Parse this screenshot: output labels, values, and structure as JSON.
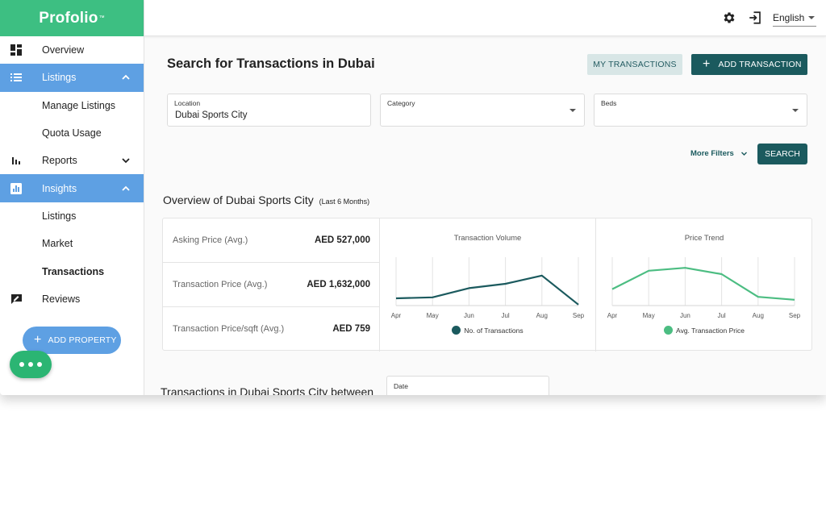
{
  "brand": {
    "name": "Profolio",
    "tm": "™"
  },
  "sidebar": {
    "items": [
      {
        "label": "Overview",
        "icon": "dashboard-icon"
      },
      {
        "label": "Listings",
        "icon": "list-icon",
        "active": true,
        "expanded": true
      },
      {
        "label": "Manage Listings",
        "sub": true
      },
      {
        "label": "Quota Usage",
        "sub": true
      },
      {
        "label": "Reports",
        "icon": "bar-chart-icon",
        "expanded": false
      },
      {
        "label": "Insights",
        "icon": "insights-icon",
        "active": true,
        "expanded": true
      },
      {
        "label": "Listings",
        "sub": true
      },
      {
        "label": "Market",
        "sub": true
      },
      {
        "label": "Transactions",
        "sub": true,
        "selected": true
      },
      {
        "label": "Reviews",
        "icon": "reviews-icon"
      }
    ],
    "add_property_label": "ADD PROPERTY"
  },
  "topbar": {
    "language": "English"
  },
  "main": {
    "title": "Search for Transactions in Dubai",
    "my_transactions_label": "MY TRANSACTIONS",
    "add_transaction_label": "ADD TRANSACTION",
    "filters": {
      "location": {
        "label": "Location",
        "value": "Dubai Sports City"
      },
      "category": {
        "label": "Category",
        "value": ""
      },
      "beds": {
        "label": "Beds",
        "value": ""
      }
    },
    "more_filters_label": "More Filters",
    "search_label": "SEARCH",
    "overview": {
      "title": "Overview of Dubai Sports City",
      "subtitle": "(Last 6 Months)",
      "stats": [
        {
          "label": "Asking Price (Avg.)",
          "value": "AED 527,000"
        },
        {
          "label": "Transaction Price (Avg.)",
          "value": "AED 1,632,000"
        },
        {
          "label": "Transaction Price/sqft (Avg.)",
          "value": "AED 759"
        }
      ]
    },
    "transactions_title": "Transactions in Dubai Sports City between",
    "date_label": "Date"
  },
  "colors": {
    "brand": "#3dbf82",
    "active_nav": "#5ea0e3",
    "primary_dark": "#1b5a5e",
    "volume_line": "#1b5a5e",
    "price_line": "#4cbd82"
  },
  "chart_data": [
    {
      "type": "line",
      "title": "Transaction Volume",
      "x": [
        "Apr",
        "May",
        "Jun",
        "Jul",
        "Aug",
        "Sep"
      ],
      "series": [
        {
          "name": "No. of Transactions",
          "values": [
            15,
            17,
            36,
            45,
            62,
            2
          ]
        }
      ],
      "ylim": [
        0,
        100
      ],
      "grid": "vertical",
      "legend": "bottom"
    },
    {
      "type": "line",
      "title": "Price Trend",
      "x": [
        "Apr",
        "May",
        "Jun",
        "Jul",
        "Aug",
        "Sep"
      ],
      "series": [
        {
          "name": "Avg. Transaction Price",
          "values": [
            34,
            72,
            78,
            65,
            18,
            12
          ]
        }
      ],
      "ylim": [
        0,
        100
      ],
      "grid": "vertical",
      "legend": "bottom"
    }
  ]
}
